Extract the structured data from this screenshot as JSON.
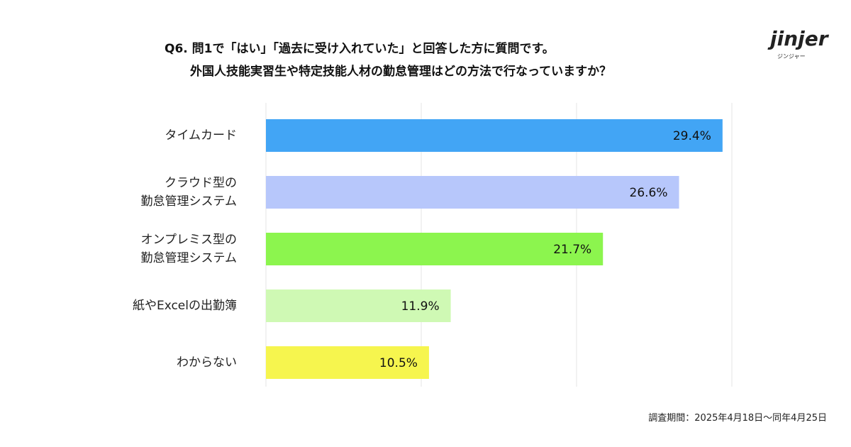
{
  "chart_data": {
    "type": "bar",
    "orientation": "horizontal",
    "title": "Q6. 問1で「はい」「過去に受け入れていた」と回答した方に質問です。",
    "subtitle": "外国人技能実習生や特定技能人材の勤怠管理はどの方法で行なっていますか？",
    "categories": [
      "タイムカード",
      "クラウド型の\n勤怠管理システム",
      "オンプレミス型の\n勤怠管理システム",
      "紙やExcelの出勤簿",
      "わからない"
    ],
    "values": [
      29.4,
      26.6,
      21.7,
      11.9,
      10.5
    ],
    "value_labels": [
      "29.4%",
      "26.6%",
      "21.7%",
      "11.9%",
      "10.5%"
    ],
    "colors": [
      "#42a5f5",
      "#b7c7fb",
      "#8cf54e",
      "#cff9b4",
      "#f6f54e"
    ],
    "xlim": [
      0,
      30
    ],
    "xticks": [
      0,
      10,
      20,
      30
    ],
    "grid": true,
    "note": "調査期間：2025年4月18日〜同年4月25日"
  },
  "logo": {
    "name": "jinjer",
    "kana": "ジンジャー"
  }
}
